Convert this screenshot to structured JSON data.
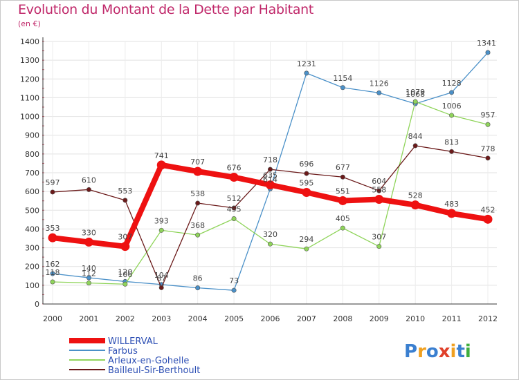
{
  "chart_data": {
    "type": "line",
    "title": "Evolution du Montant de la Dette par Habitant",
    "subtitle": "(en €)",
    "categories": [
      "2000",
      "2001",
      "2002",
      "2003",
      "2004",
      "2005",
      "2006",
      "2007",
      "2008",
      "2009",
      "2010",
      "2011",
      "2012"
    ],
    "ylim": [
      0,
      1400
    ],
    "yticks": [
      0,
      100,
      200,
      300,
      400,
      500,
      600,
      700,
      800,
      900,
      1000,
      1100,
      1200,
      1300,
      1400
    ],
    "grid": true,
    "legend_position": "bottom-left",
    "series": [
      {
        "name": "Farbus",
        "color": "#4a90c8",
        "values": [
          162,
          140,
          120,
          104,
          86,
          73,
          614,
          1231,
          1154,
          1126,
          1068,
          1128,
          1341
        ]
      },
      {
        "name": "Arleux-en-Gohelle",
        "color": "#8fd45a",
        "values": [
          118,
          112,
          106,
          393,
          368,
          455,
          320,
          294,
          405,
          307,
          1079,
          1006,
          957
        ]
      },
      {
        "name": "Bailleul-Sir-Berthoult",
        "color": "#6b1a1a",
        "values": [
          597,
          610,
          553,
          87,
          538,
          512,
          718,
          696,
          677,
          604,
          844,
          813,
          778
        ]
      },
      {
        "name": "WILLERVAL",
        "color": "#ee1111",
        "values": [
          353,
          330,
          307,
          741,
          707,
          676,
          635,
          595,
          551,
          558,
          528,
          483,
          452
        ]
      }
    ]
  },
  "legend": {
    "order": [
      "WILLERVAL",
      "Farbus",
      "Arleux-en-Gohelle",
      "Bailleul-Sir-Berthoult"
    ],
    "text_color": "#2d4fb4"
  },
  "logo": {
    "text": "Proxiti",
    "colors": [
      "#3a7fd0",
      "#f0a020",
      "#3a7fd0",
      "#e0402a",
      "#f0a020",
      "#3a7fd0",
      "#3fae3f"
    ]
  }
}
